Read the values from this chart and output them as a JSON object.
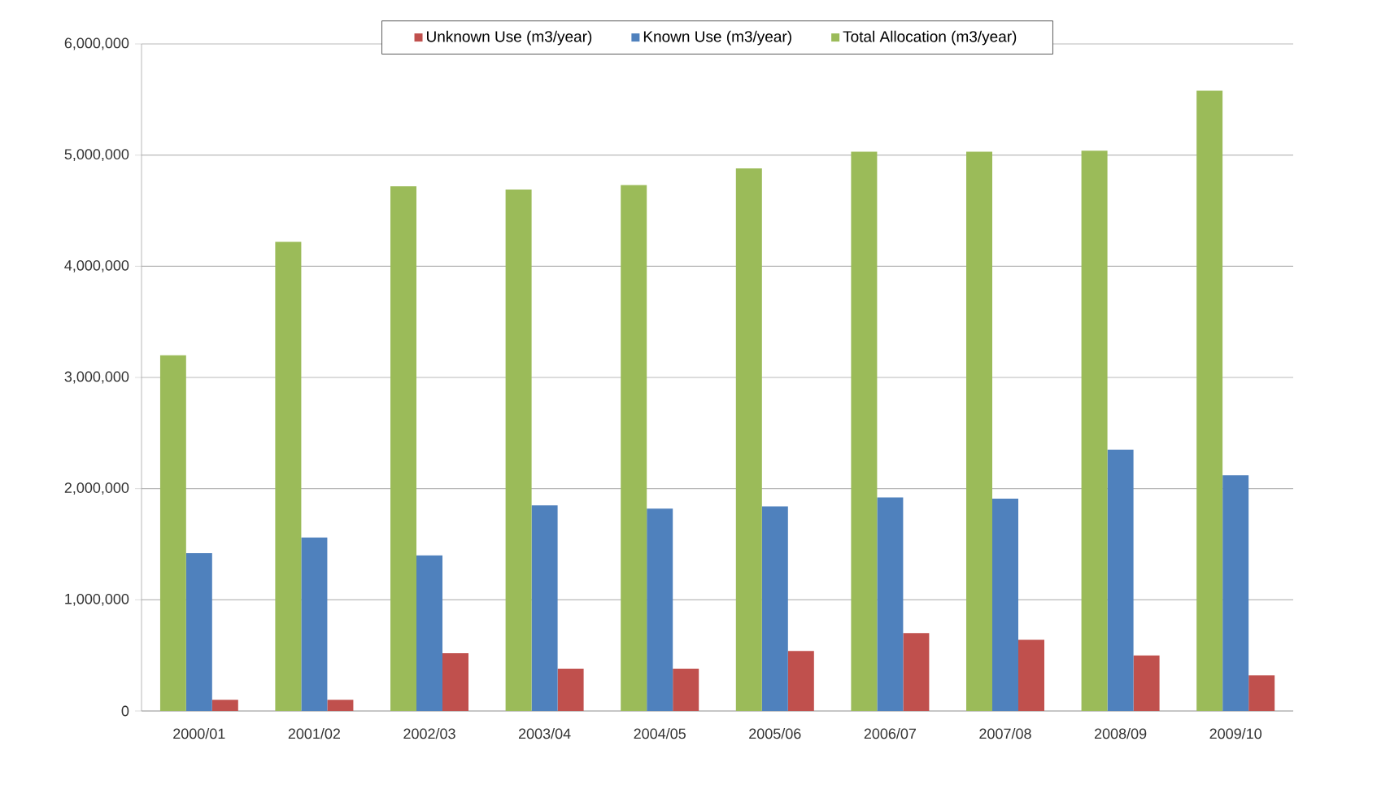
{
  "chart_data": {
    "type": "bar",
    "categories": [
      "2000/01",
      "2001/02",
      "2002/03",
      "2003/04",
      "2004/05",
      "2005/06",
      "2006/07",
      "2007/08",
      "2008/09",
      "2009/10"
    ],
    "series": [
      {
        "name": "Unknown Use (m3/year)",
        "color": "#c0504d",
        "values": [
          100000,
          100000,
          520000,
          380000,
          380000,
          540000,
          700000,
          640000,
          500000,
          320000
        ]
      },
      {
        "name": "Known Use (m3/year)",
        "color": "#4f81bd",
        "values": [
          1420000,
          1560000,
          1400000,
          1850000,
          1820000,
          1840000,
          1920000,
          1910000,
          2350000,
          2120000
        ]
      },
      {
        "name": "Total Allocation (m3/year)",
        "color": "#9bbb59",
        "values": [
          3200000,
          4220000,
          4720000,
          4690000,
          4730000,
          4880000,
          5030000,
          5030000,
          5040000,
          5580000
        ]
      }
    ],
    "ylim": [
      0,
      6000000
    ],
    "yticks": [
      0,
      {
        "value": 1000000,
        "label": "1,000,000"
      },
      {
        "value": 2000000,
        "label": "2,000,000"
      },
      {
        "value": 3000000,
        "label": "3,000,000"
      },
      {
        "value": 4000000,
        "label": "4,000,000"
      },
      {
        "value": 5000000,
        "label": "5,000,000"
      },
      {
        "value": 6000000,
        "label": "6,000,000"
      }
    ],
    "grid": "y",
    "legend": "top"
  }
}
